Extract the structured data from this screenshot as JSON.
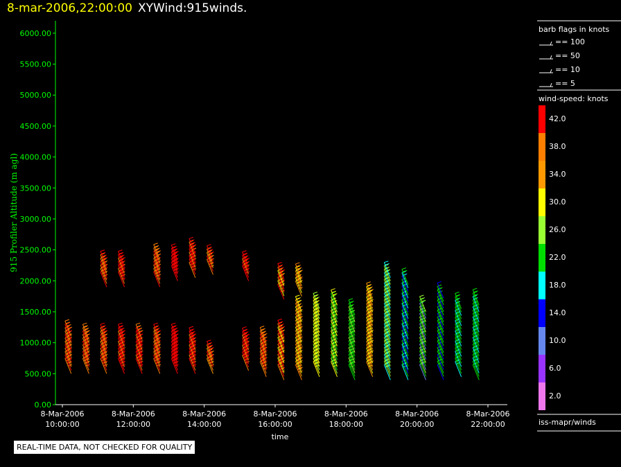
{
  "header": {
    "timestamp": "8-mar-2006,22:00:00",
    "product": "XYWind:915winds."
  },
  "footer": {
    "qc_notice": "REAL-TIME DATA, NOT CHECKED FOR QUALITY"
  },
  "barb_legend": {
    "title": "barb flags in knots",
    "entries": [
      "== 100",
      "== 50",
      "== 10",
      "== 5"
    ]
  },
  "color_scale": {
    "title": "wind-speed: knots",
    "labels": [
      "42.0",
      "38.0",
      "34.0",
      "30.0",
      "26.0",
      "22.0",
      "18.0",
      "14.0",
      "10.0",
      "6.0",
      "2.0"
    ],
    "colors": [
      "#ff0000",
      "#ff7f00",
      "#ff9900",
      "#ffff00",
      "#99ff33",
      "#00dd00",
      "#00ffff",
      "#0000ff",
      "#6688ee",
      "#9933ff",
      "#ee77ee"
    ]
  },
  "source_label": "iss-mapr/winds",
  "chart_data": {
    "type": "scatter",
    "xlabel": "time",
    "ylabel": "915 Profiler Altitude (m agl)",
    "ylim": [
      0,
      6200
    ],
    "xlim": [
      "2006-03-08 10:00",
      "2006-03-08 22:00"
    ],
    "x_ticks": [
      {
        "date": "8-Mar-2006",
        "time": "10:00:00"
      },
      {
        "date": "8-Mar-2006",
        "time": "12:00:00"
      },
      {
        "date": "8-Mar-2006",
        "time": "14:00:00"
      },
      {
        "date": "8-Mar-2006",
        "time": "16:00:00"
      },
      {
        "date": "8-Mar-2006",
        "time": "18:00:00"
      },
      {
        "date": "8-Mar-2006",
        "time": "20:00:00"
      },
      {
        "date": "8-Mar-2006",
        "time": "22:00:00"
      }
    ],
    "y_ticks": [
      "0.00",
      "500.00",
      "1000.00",
      "1500.00",
      "2000.00",
      "2500.00",
      "3000.00",
      "3500.00",
      "4000.00",
      "4500.00",
      "5000.00",
      "5500.00",
      "6000.00"
    ],
    "profiles": [
      {
        "time": "10:15",
        "lower": [
          500,
          1150
        ],
        "upper": null,
        "speeds": [
          38,
          42,
          40
        ]
      },
      {
        "time": "10:45",
        "lower": [
          500,
          1050
        ],
        "upper": null,
        "speeds": [
          38,
          40,
          42
        ]
      },
      {
        "time": "11:15",
        "lower": [
          500,
          1050
        ],
        "upper": [
          1900,
          2250
        ],
        "speeds": [
          40,
          42,
          38
        ]
      },
      {
        "time": "11:45",
        "lower": [
          500,
          1050
        ],
        "upper": [
          1900,
          2250
        ],
        "speeds": [
          42,
          42,
          38
        ]
      },
      {
        "time": "12:15",
        "lower": [
          500,
          1050
        ],
        "upper": null,
        "speeds": [
          42,
          40,
          42
        ]
      },
      {
        "time": "12:45",
        "lower": [
          500,
          1050
        ],
        "upper": [
          1900,
          2350
        ],
        "speeds": [
          40,
          42,
          38
        ]
      },
      {
        "time": "13:15",
        "lower": [
          500,
          1050
        ],
        "upper": [
          2000,
          2350
        ],
        "speeds": [
          42,
          42,
          42
        ]
      },
      {
        "time": "13:45",
        "lower": [
          500,
          1000
        ],
        "upper": [
          2050,
          2450
        ],
        "speeds": [
          42,
          40,
          42
        ]
      },
      {
        "time": "14:15",
        "lower": [
          500,
          800
        ],
        "upper": [
          2100,
          2350
        ],
        "speeds": [
          36,
          38,
          42
        ]
      },
      {
        "time": "15:15",
        "lower": [
          550,
          1000
        ],
        "upper": [
          2000,
          2250
        ],
        "speeds": [
          40,
          42,
          42
        ]
      },
      {
        "time": "15:45",
        "lower": [
          450,
          1050
        ],
        "upper": null,
        "speeds": [
          38,
          40,
          42
        ]
      },
      {
        "time": "16:15",
        "lower": [
          400,
          1150
        ],
        "upper": [
          1700,
          2050
        ],
        "speeds": [
          40,
          42,
          30
        ]
      },
      {
        "time": "16:45",
        "lower": [
          400,
          1550
        ],
        "upper": [
          1750,
          2050
        ],
        "speeds": [
          38,
          36,
          30
        ]
      },
      {
        "time": "17:15",
        "lower": [
          450,
          1550
        ],
        "upper": null,
        "speeds": [
          32,
          30,
          28
        ]
      },
      {
        "time": "17:45",
        "lower": [
          450,
          1650
        ],
        "upper": null,
        "speeds": [
          30,
          26,
          24
        ]
      },
      {
        "time": "18:15",
        "lower": [
          400,
          1450
        ],
        "upper": null,
        "speeds": [
          22,
          24,
          26
        ]
      },
      {
        "time": "18:45",
        "lower": [
          450,
          1750
        ],
        "upper": null,
        "speeds": [
          34,
          30,
          36
        ]
      },
      {
        "time": "19:15",
        "lower": [
          400,
          2050
        ],
        "upper": null,
        "speeds": [
          20,
          28,
          26
        ]
      },
      {
        "time": "19:45",
        "lower": [
          400,
          1950
        ],
        "upper": null,
        "speeds": [
          18,
          24,
          14
        ]
      },
      {
        "time": "20:15",
        "lower": [
          400,
          1550
        ],
        "upper": null,
        "speeds": [
          12,
          22,
          26
        ]
      },
      {
        "time": "20:45",
        "lower": [
          400,
          1750
        ],
        "upper": null,
        "speeds": [
          14,
          22,
          24
        ]
      },
      {
        "time": "21:15",
        "lower": [
          450,
          1600
        ],
        "upper": null,
        "speeds": [
          20,
          22,
          24
        ]
      },
      {
        "time": "21:45",
        "lower": [
          400,
          1650
        ],
        "upper": null,
        "speeds": [
          22,
          24,
          20
        ]
      }
    ]
  }
}
